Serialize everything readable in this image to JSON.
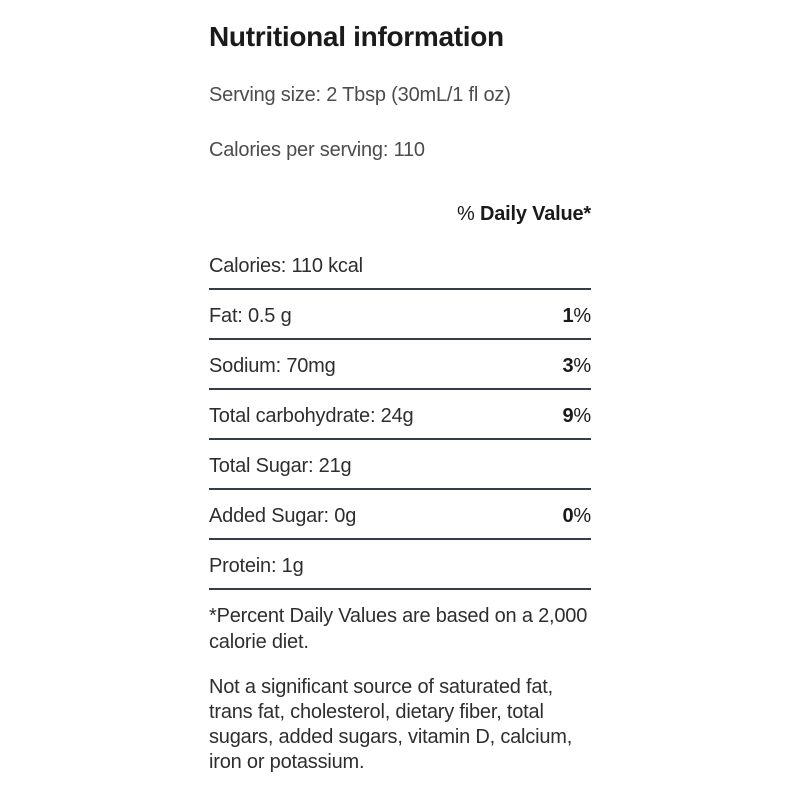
{
  "colors": {
    "background": "#ffffff",
    "title_text": "#1a1a1a",
    "body_text": "#4c4c4c",
    "table_text": "#2e2e2e",
    "rule": "#333e48"
  },
  "panel": {
    "title": "Nutritional information",
    "serving_size": "Serving size: 2 Tbsp (30mL/1 fl oz)",
    "calories_per_serving": "Calories per serving: 110",
    "daily_value_header": {
      "prefix": "% ",
      "bold": "Daily Value*"
    },
    "rows": [
      {
        "label": "Calories: 110 kcal",
        "daily_value_number": "",
        "daily_value_sign": ""
      },
      {
        "label": "Fat: 0.5 g",
        "daily_value_number": "1",
        "daily_value_sign": "%"
      },
      {
        "label": "Sodium: 70mg",
        "daily_value_number": "3",
        "daily_value_sign": "%"
      },
      {
        "label": "Total carbohydrate: 24g",
        "daily_value_number": "9",
        "daily_value_sign": "%"
      },
      {
        "label": "Total Sugar: 21g",
        "daily_value_number": "",
        "daily_value_sign": ""
      },
      {
        "label": "Added Sugar: 0g",
        "daily_value_number": "0",
        "daily_value_sign": "%"
      },
      {
        "label": "Protein: 1g",
        "daily_value_number": "",
        "daily_value_sign": ""
      }
    ],
    "footnote": "*Percent Daily Values are based on a 2,000 calorie diet.",
    "disclaimer": "Not a significant source of saturated fat, trans fat, cholesterol, dietary fiber, total sugars, added sugars, vitamin D, calcium, iron or potassium."
  }
}
